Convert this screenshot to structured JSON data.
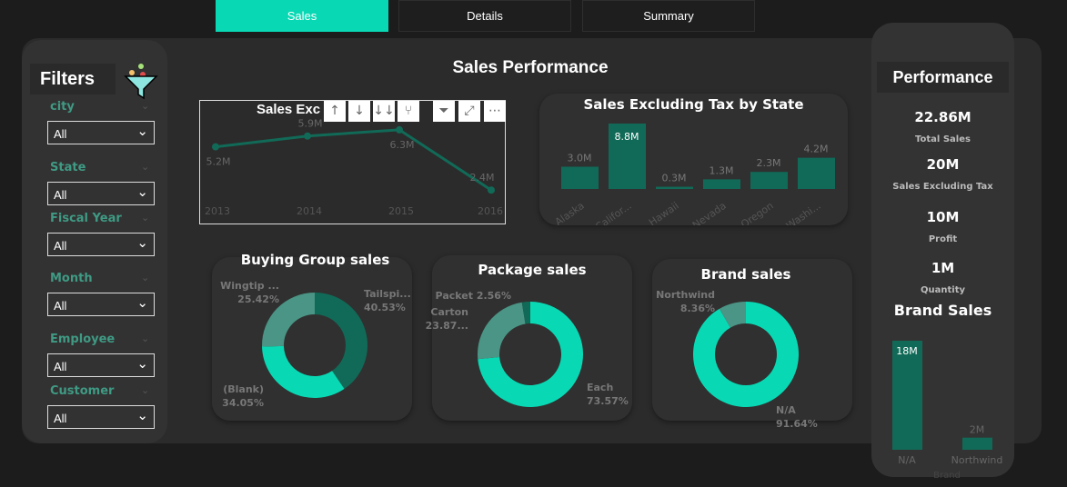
{
  "tabs": [
    {
      "label": "Sales",
      "active": true
    },
    {
      "label": "Details"
    },
    {
      "label": "Summary"
    }
  ],
  "page_title": "Sales Performance",
  "filters": {
    "title": "Filters",
    "icon": "funnel-icon",
    "items": [
      {
        "label": "city",
        "value": "All"
      },
      {
        "label": "State",
        "value": "All"
      },
      {
        "label": "Fiscal Year",
        "value": "All"
      },
      {
        "label": "Month",
        "value": "All"
      },
      {
        "label": "Employee",
        "value": "All"
      },
      {
        "label": "Customer",
        "value": "All"
      }
    ]
  },
  "toolbar": {
    "icons": [
      "sort-ascending-icon",
      "sort-descending-icon",
      "expand-all-down-icon",
      "drill-down-icon",
      "filter-icon",
      "focus-mode-icon",
      "more-options-icon"
    ]
  },
  "colors": {
    "accent": "#08d9b4",
    "dark_teal": "#116a57",
    "mid_teal": "#4a9585",
    "panel": "#2b2b2b"
  },
  "chart_data": [
    {
      "type": "line",
      "title": "Sales Excluding Tax by Year",
      "title_visible": "Sales Exc",
      "categories": [
        "2013",
        "2014",
        "2015",
        "2016"
      ],
      "values": [
        5.2,
        5.9,
        6.3,
        2.4
      ],
      "labels": [
        "5.2M",
        "5.9M",
        "6.3M",
        "2.4M"
      ]
    },
    {
      "type": "bar",
      "title": "Sales Excluding Tax by State",
      "categories": [
        "Alaska",
        "Califor...",
        "Hawaii",
        "Nevada",
        "Oregon",
        "Washi..."
      ],
      "values": [
        3.0,
        8.8,
        0.3,
        1.3,
        2.3,
        4.2
      ],
      "labels": [
        "3.0M",
        "8.8M",
        "0.3M",
        "1.3M",
        "2.3M",
        "4.2M"
      ]
    },
    {
      "type": "pie",
      "title": "Buying Group sales",
      "slices": [
        {
          "name": "Tailspi...",
          "value": 40.53,
          "label": "40.53%",
          "color": "#116a57"
        },
        {
          "name": "(Blank)",
          "value": 34.05,
          "label": "34.05%",
          "color": "#08d9b4"
        },
        {
          "name": "Wingtip ...",
          "value": 25.42,
          "label": "25.42%",
          "color": "#4a9585"
        }
      ]
    },
    {
      "type": "pie",
      "title": "Package sales",
      "slices": [
        {
          "name": "Each",
          "value": 73.57,
          "label": "73.57%",
          "color": "#08d9b4"
        },
        {
          "name": "Carton",
          "value": 23.87,
          "label": "23.87...",
          "color": "#4a9585"
        },
        {
          "name": "Packet",
          "value": 2.56,
          "label": "2.56%",
          "color": "#116a57"
        }
      ]
    },
    {
      "type": "pie",
      "title": "Brand sales",
      "slices": [
        {
          "name": "N/A",
          "value": 91.64,
          "label": "91.64%",
          "color": "#08d9b4"
        },
        {
          "name": "Northwind",
          "value": 8.36,
          "label": "8.36%",
          "color": "#4a9585"
        }
      ]
    },
    {
      "type": "bar",
      "title": "Brand Sales",
      "xlabel": "Brand",
      "categories": [
        "N/A",
        "Northwind"
      ],
      "values": [
        18,
        2
      ],
      "labels": [
        "18M",
        "2M"
      ]
    }
  ],
  "performance": {
    "title": "Performance",
    "kpis": [
      {
        "value": "22.86M",
        "label": "Total Sales"
      },
      {
        "value": "20M",
        "label": "Sales Excluding  Tax"
      },
      {
        "value": "10M",
        "label": "Profit"
      },
      {
        "value": "1M",
        "label": "Quantity"
      }
    ]
  }
}
